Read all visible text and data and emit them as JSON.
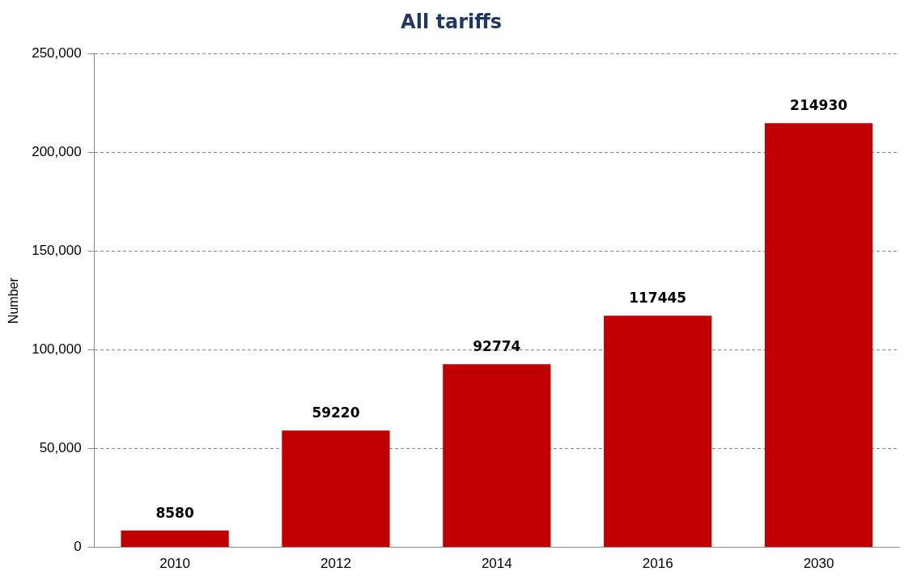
{
  "chart_data": {
    "type": "bar",
    "title": "All tariffs",
    "ylabel": "Number",
    "categories": [
      "2010",
      "2012",
      "2014",
      "2016",
      "2030"
    ],
    "values": [
      8580,
      59220,
      92774,
      117445,
      214930
    ],
    "color": "#c00000",
    "ylim": [
      0,
      250000
    ],
    "yticks": [
      {
        "value": 0,
        "label": "0"
      },
      {
        "value": 50000,
        "label": "50,000"
      },
      {
        "value": 100000,
        "label": "100,000"
      },
      {
        "value": 150000,
        "label": "150,000"
      },
      {
        "value": 200000,
        "label": "200,000"
      },
      {
        "value": 250000,
        "label": "250,000"
      }
    ],
    "grid": "y",
    "legend": false,
    "data_labels": true
  }
}
